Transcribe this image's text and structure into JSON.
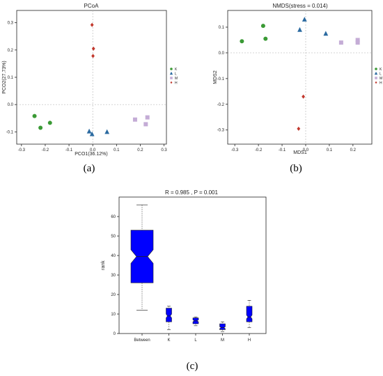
{
  "colors": {
    "K": "#3a9a35",
    "L": "#2b6aa0",
    "M": "#c4acd6",
    "H": "#c2382d",
    "box": "#0000ff"
  },
  "chart_data": [
    {
      "type": "scatter",
      "title": "PCoA",
      "xlabel": "PCO1(36.12%)",
      "ylabel": "PCO2(27.73%)",
      "caption": "(a)",
      "xlim": [
        -0.32,
        0.31
      ],
      "ylim": [
        -0.145,
        0.345
      ],
      "xticks": [
        "-0.3",
        "-0.2",
        "-0.1",
        "0.0",
        "0.1",
        "0.2",
        "0.3"
      ],
      "yticks": [
        "-0.1",
        "0.0",
        "0.1",
        "0.2",
        "0.3"
      ],
      "legend": [
        "K",
        "L",
        "M",
        "H"
      ],
      "legend_position": "right",
      "series": [
        {
          "name": "K",
          "marker": "circle",
          "x": [
            -0.245,
            -0.22,
            -0.18
          ],
          "y": [
            -0.042,
            -0.085,
            -0.067
          ]
        },
        {
          "name": "L",
          "marker": "triangle",
          "x": [
            -0.015,
            -0.003,
            0.06
          ],
          "y": [
            -0.098,
            -0.108,
            -0.1
          ]
        },
        {
          "name": "M",
          "marker": "square",
          "x": [
            0.178,
            0.223,
            0.23
          ],
          "y": [
            -0.055,
            -0.072,
            -0.047
          ]
        },
        {
          "name": "H",
          "marker": "diamond",
          "x": [
            -0.003,
            0.003,
            0.001
          ],
          "y": [
            0.292,
            0.205,
            0.178
          ]
        }
      ]
    },
    {
      "type": "scatter",
      "title": "NMDS(stress = 0.014)",
      "xlabel": "MDS1",
      "ylabel": "MDS2",
      "caption": "(b)",
      "xlim": [
        -0.33,
        0.28
      ],
      "ylim": [
        -0.355,
        0.165
      ],
      "xticks": [
        "-0.3",
        "-0.2",
        "-0.1",
        "0.0",
        "0.1",
        "0.2"
      ],
      "yticks": [
        "-0.3",
        "-0.2",
        "-0.1",
        "0.0",
        "0.1"
      ],
      "legend": [
        "K",
        "L",
        "M",
        "H"
      ],
      "legend_position": "right",
      "series": [
        {
          "name": "K",
          "marker": "circle",
          "x": [
            -0.27,
            -0.18,
            -0.17
          ],
          "y": [
            0.045,
            0.105,
            0.055
          ]
        },
        {
          "name": "L",
          "marker": "triangle",
          "x": [
            -0.005,
            -0.025,
            0.085
          ],
          "y": [
            0.13,
            0.09,
            0.075
          ]
        },
        {
          "name": "M",
          "marker": "square",
          "x": [
            0.15,
            0.22,
            0.22
          ],
          "y": [
            0.04,
            0.05,
            0.04
          ]
        },
        {
          "name": "H",
          "marker": "diamond",
          "x": [
            -0.01,
            -0.03
          ],
          "y": [
            -0.17,
            -0.295
          ]
        }
      ]
    },
    {
      "type": "box",
      "title": "R = 0.985 , P = 0.001",
      "xlabel": "",
      "ylabel": "rank",
      "caption": "(c)",
      "ylim": [
        0,
        70
      ],
      "yticks": [
        "0",
        "10",
        "20",
        "30",
        "40",
        "50",
        "60"
      ],
      "categories": [
        "Between",
        "K",
        "L",
        "M",
        "H"
      ],
      "boxes": [
        {
          "name": "Between",
          "min": 12,
          "q1": 26,
          "median": 39.5,
          "q3": 53,
          "max": 66,
          "notch_lo": 36,
          "notch_hi": 43
        },
        {
          "name": "K",
          "min": 2,
          "q1": 6,
          "median": 9,
          "q3": 13,
          "max": 14,
          "notch_lo": 8,
          "notch_hi": 10
        },
        {
          "name": "L",
          "min": 4,
          "q1": 5,
          "median": 6.5,
          "q3": 8,
          "max": 8.5,
          "notch_lo": 6,
          "notch_hi": 7
        },
        {
          "name": "M",
          "min": 1,
          "q1": 2,
          "median": 3,
          "q3": 5,
          "max": 6,
          "notch_lo": 2.5,
          "notch_hi": 3.5
        },
        {
          "name": "H",
          "min": 3,
          "q1": 6,
          "median": 8.5,
          "q3": 14,
          "max": 17,
          "notch_lo": 7.5,
          "notch_hi": 9.5
        }
      ]
    }
  ]
}
